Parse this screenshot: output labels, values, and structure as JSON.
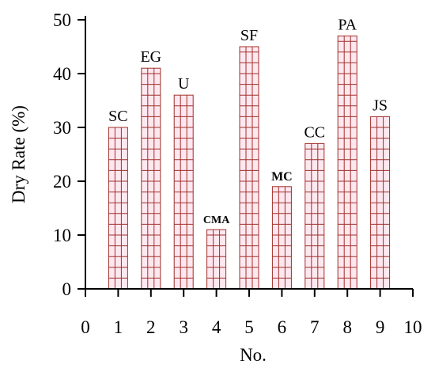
{
  "chart_data": {
    "type": "bar",
    "x": [
      1,
      2,
      3,
      4,
      5,
      6,
      7,
      8,
      9
    ],
    "values": [
      30,
      41,
      36,
      11,
      45,
      19,
      27,
      47,
      32
    ],
    "bar_labels": [
      "SC",
      "EG",
      "U",
      "CMA",
      "SF",
      "MC",
      "CC",
      "PA",
      "JS"
    ],
    "xlabel": "No.",
    "ylabel": "Dry Rate (%)",
    "xlim": [
      0,
      10
    ],
    "ylim": [
      0,
      50
    ],
    "x_ticks": [
      0,
      1,
      2,
      3,
      4,
      5,
      6,
      7,
      8,
      9,
      10
    ],
    "y_ticks": [
      0,
      10,
      20,
      30,
      40,
      50
    ],
    "grid": false,
    "colors": {
      "bar_fill": "#fde8f0",
      "bar_grid": "#a0302a",
      "axis": "#000000"
    }
  }
}
